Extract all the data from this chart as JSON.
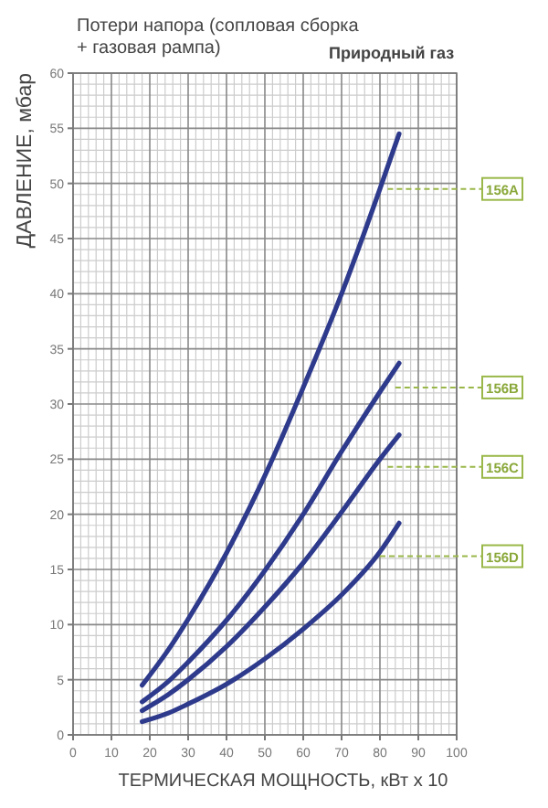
{
  "chart_data": {
    "type": "line",
    "title": "Потери напора (сопловая сборка + газовая рампа)",
    "subtitle": "Природный газ",
    "xlabel": "ТЕРМИЧЕСКАЯ МОЩНОСТЬ, кВт x 10",
    "ylabel": "ДАВЛЕНИЕ, мбар",
    "x": [
      18,
      25,
      30,
      40,
      50,
      60,
      70,
      80,
      85
    ],
    "series": [
      {
        "color": "#2e3a8c",
        "values": [
          4.5,
          7.8,
          10.5,
          16.5,
          23.5,
          31.5,
          40,
          49.5,
          54.5
        ]
      },
      {
        "color": "#2e3a8c",
        "values": [
          3,
          4.9,
          6.6,
          10.4,
          14.9,
          20,
          25.7,
          31.1,
          33.7
        ]
      },
      {
        "color": "#2e3a8c",
        "values": [
          2.2,
          3.7,
          5,
          8,
          11.6,
          15.6,
          20.2,
          25,
          27.2
        ]
      },
      {
        "color": "#2e3a8c",
        "values": [
          1.2,
          2,
          2.8,
          4.6,
          6.9,
          9.6,
          12.7,
          16.6,
          19.2
        ]
      }
    ],
    "annotations": [
      {
        "text": "156A",
        "x": 82,
        "y": 49.5
      },
      {
        "text": "156B",
        "x": 84,
        "y": 31.5
      },
      {
        "text": "156C",
        "x": 82,
        "y": 24.3
      },
      {
        "text": "156D",
        "x": 80,
        "y": 16.2
      }
    ],
    "xlim": [
      0,
      100
    ],
    "xticks": [
      0,
      10,
      20,
      30,
      40,
      50,
      60,
      70,
      80,
      90,
      100
    ],
    "ylim": [
      0,
      60
    ],
    "yticks": [
      0,
      5,
      10,
      15,
      20,
      25,
      30,
      35,
      40,
      45,
      50,
      55,
      60
    ],
    "grid": true,
    "marker": "none",
    "line_style": "solid"
  }
}
